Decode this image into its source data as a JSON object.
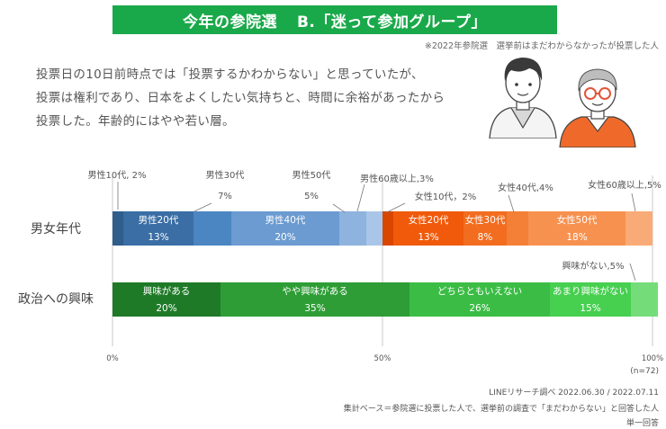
{
  "header": {
    "title_part1": "今年の参院選",
    "title_part2": "B.「迷って参加グループ」",
    "note": "※2022年参院選　選挙前はまだわからなかったが投票した人"
  },
  "description": {
    "lines": [
      "投票日の10日前時点では「投票するかわからない」と思っていたが、",
      "投票は権利であり、日本をよくしたい気持ちと、時間に余裕があったから",
      "投票した。年齢的にはやや若い層。"
    ]
  },
  "illustrations": [
    {
      "icon": "young-man-illustration"
    },
    {
      "icon": "elderly-man-with-glasses-illustration"
    }
  ],
  "chart_data": {
    "type": "bar",
    "orientation": "horizontal",
    "stacked": true,
    "xlim": [
      0,
      100
    ],
    "x_ticks": [
      "0%",
      "50%",
      "100%"
    ],
    "grid": true,
    "n_label": "(n=72)",
    "rows": [
      {
        "label": "男女年代",
        "segments": [
          {
            "name": "男性10代, 2%",
            "value": 2,
            "color": "#2f5d8c",
            "label_inside": false
          },
          {
            "name": "男性20代",
            "value_label": "13%",
            "value": 13,
            "color": "#3a6ea5",
            "label_inside": true
          },
          {
            "name": "男性30代",
            "value_label": "7%",
            "value": 7,
            "color": "#4b86c2",
            "label_inside": false
          },
          {
            "name": "男性40代",
            "value_label": "20%",
            "value": 20,
            "color": "#6b9bd1",
            "label_inside": true
          },
          {
            "name": "男性50代",
            "value_label": "5%",
            "value": 5,
            "color": "#8db3de",
            "label_inside": false
          },
          {
            "name": "男性60歳以上,3%",
            "value": 3,
            "color": "#a9c6e8",
            "label_inside": false
          },
          {
            "name": "女性10代，2%",
            "value": 2,
            "color": "#d94600",
            "label_inside": false
          },
          {
            "name": "女性20代",
            "value_label": "13%",
            "value": 13,
            "color": "#f05a0a",
            "label_inside": true
          },
          {
            "name": "女性30代",
            "value_label": "8%",
            "value": 8,
            "color": "#f26d1f",
            "label_inside": true
          },
          {
            "name": "女性40代,4%",
            "value": 4,
            "color": "#f47f36",
            "label_inside": false
          },
          {
            "name": "女性50代",
            "value_label": "18%",
            "value": 18,
            "color": "#f7914f",
            "label_inside": true
          },
          {
            "name": "女性60歳以上,5%",
            "value": 5,
            "color": "#f9ab77",
            "label_inside": false
          }
        ]
      },
      {
        "label": "政治への興味",
        "segments": [
          {
            "name": "興味がある",
            "value_label": "20%",
            "value": 20,
            "color": "#1f7a28",
            "label_inside": true
          },
          {
            "name": "やや興味がある",
            "value_label": "35%",
            "value": 35,
            "color": "#2e9d36",
            "label_inside": true
          },
          {
            "name": "どちらともいえない",
            "value_label": "26%",
            "value": 26,
            "color": "#3bbd45",
            "label_inside": true
          },
          {
            "name": "あまり興味がない",
            "value_label": "15%",
            "value": 15,
            "color": "#47cf50",
            "label_inside": true
          },
          {
            "name": "興味がない,5%",
            "value": 5,
            "color": "#74dd79",
            "label_inside": false
          }
        ]
      }
    ]
  },
  "footer": {
    "source": "LINEリサーチ調べ 2022.06.30 / 2022.07.11",
    "base": "集計ベース＝参院選に投票した人で、選挙前の調査で「まだわからない」と回答した人",
    "answer_type": "単一回答"
  }
}
